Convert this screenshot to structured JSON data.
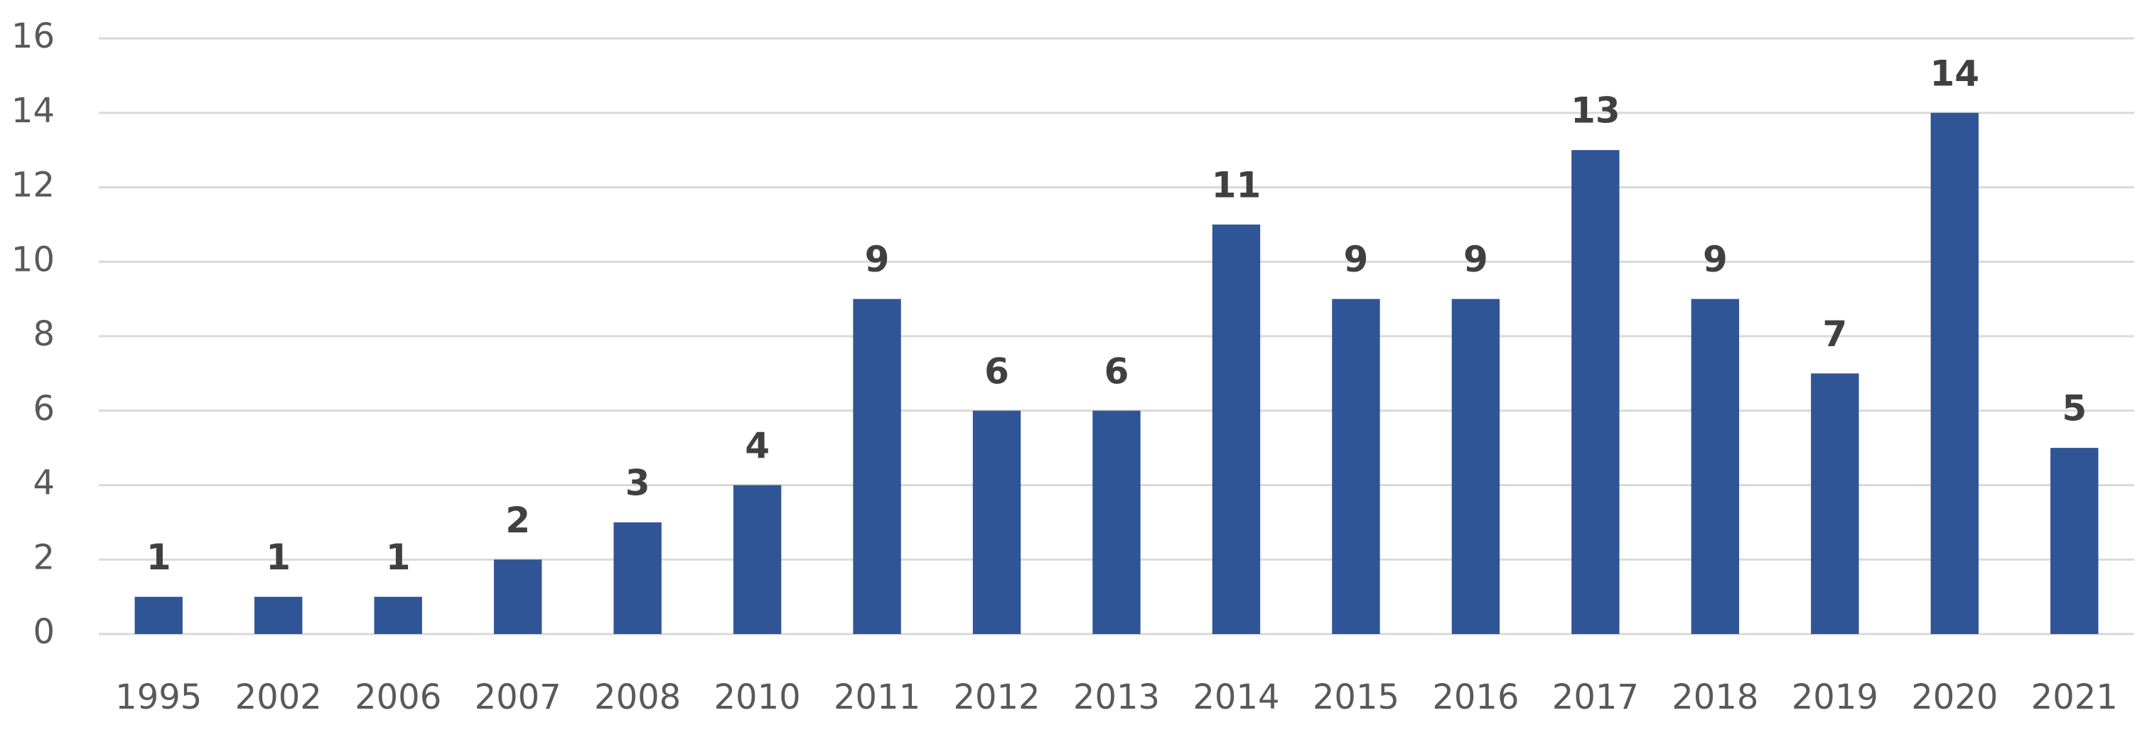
{
  "chart_data": {
    "type": "bar",
    "categories": [
      "1995",
      "2002",
      "2006",
      "2007",
      "2008",
      "2010",
      "2011",
      "2012",
      "2013",
      "2014",
      "2015",
      "2016",
      "2017",
      "2018",
      "2019",
      "2020",
      "2021"
    ],
    "values": [
      1,
      1,
      1,
      2,
      3,
      4,
      9,
      6,
      6,
      11,
      9,
      9,
      13,
      9,
      7,
      14,
      5
    ],
    "color": "#2f5597",
    "ylim": [
      0,
      16
    ],
    "yticks": [
      0,
      2,
      4,
      6,
      8,
      10,
      12,
      14,
      16
    ],
    "grid": true
  }
}
